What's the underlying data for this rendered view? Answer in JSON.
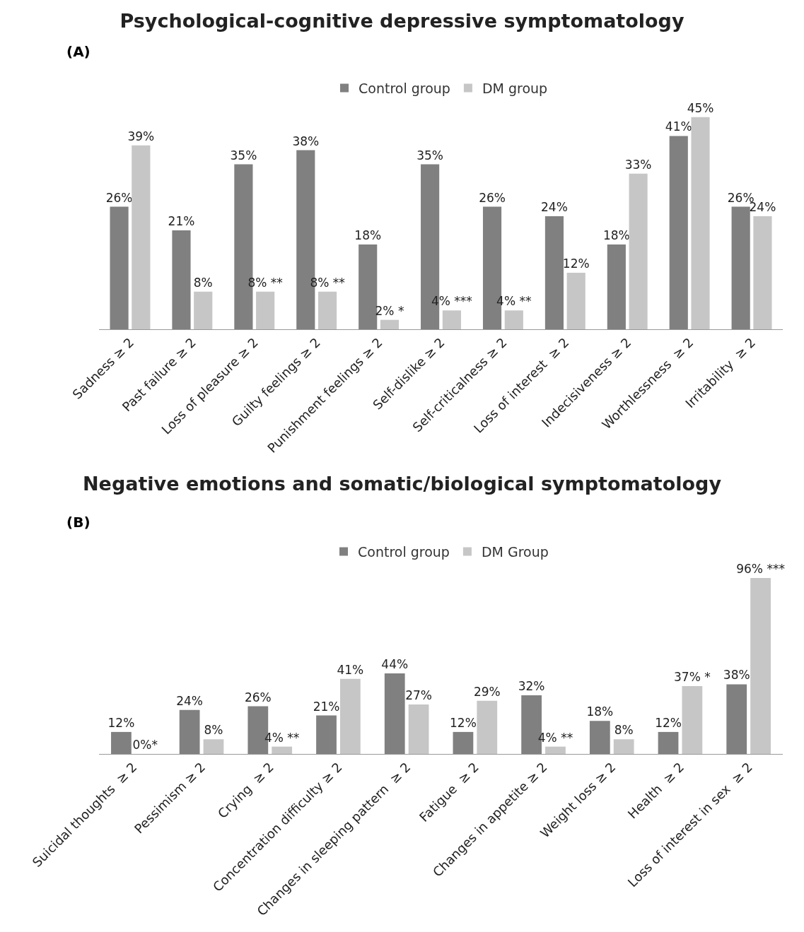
{
  "chart_data": [
    {
      "type": "bar",
      "title": "Psychological-cognitive depressive symptomatology",
      "annotations": [
        "(A)"
      ],
      "categories": [
        "Sadness ≥ 2",
        "Past failure ≥ 2",
        "Loss of pleasure ≥ 2",
        "Guilty feelings ≥ 2",
        "Punishment feelings ≥ 2",
        "Self-dislike ≥ 2",
        "Self-criticalness ≥ 2",
        "Loss of interest  ≥ 2",
        "Indecisiveness ≥ 2",
        "Worthlessness  ≥ 2",
        "Irritability  ≥ 2"
      ],
      "series": [
        {
          "name": "Control group",
          "color": "#808080",
          "values": [
            26,
            21,
            35,
            38,
            18,
            35,
            26,
            24,
            18,
            41,
            26
          ],
          "value_labels": [
            "26%",
            "21%",
            "35%",
            "38%",
            "18%",
            "35%",
            "26%",
            "24%",
            "18%",
            "41%",
            "26%"
          ]
        },
        {
          "name": "DM group",
          "color": "#c6c6c6",
          "values": [
            39,
            8,
            8,
            8,
            2,
            4,
            4,
            12,
            33,
            45,
            24
          ],
          "value_labels": [
            "39%",
            "8%",
            "8% **",
            "8% **",
            "2% *",
            "4% ***",
            "4% **",
            "12%",
            "33%",
            "45%",
            "24%"
          ]
        }
      ],
      "legend": "top",
      "grid": false,
      "tick_labels": "x"
    },
    {
      "type": "bar",
      "title": "Negative emotions and somatic/biological symptomatology",
      "annotations": [
        "(B)"
      ],
      "categories": [
        "Suicidal thoughts  ≥ 2",
        "Pessimism ≥ 2",
        "Crying  ≥ 2",
        "Concentration difficulty ≥ 2",
        "Changes in sleeping pattern  ≥ 2",
        "Fatigue  ≥ 2",
        "Changes in appetite ≥ 2",
        "Weight loss ≥ 2",
        "Health  ≥ 2",
        "Loss of interest in sex  ≥ 2"
      ],
      "series": [
        {
          "name": "Control group",
          "color": "#808080",
          "values": [
            12,
            24,
            26,
            21,
            44,
            12,
            32,
            18,
            12,
            38
          ],
          "value_labels": [
            "12%",
            "24%",
            "26%",
            "21%",
            "44%",
            "12%",
            "32%",
            "18%",
            "12%",
            "38%"
          ]
        },
        {
          "name": "DM Group",
          "color": "#c6c6c6",
          "values": [
            0,
            8,
            4,
            41,
            27,
            29,
            4,
            8,
            37,
            96
          ],
          "value_labels": [
            "0%*",
            "8%",
            "4% **",
            "41%",
            "27%",
            "29%",
            "4% **",
            "8%",
            "37% *",
            "96% ***"
          ]
        }
      ],
      "legend": "top",
      "grid": false,
      "tick_labels": "x"
    }
  ]
}
